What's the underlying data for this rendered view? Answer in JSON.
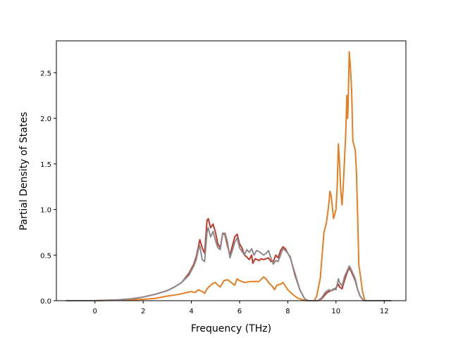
{
  "chart_data": {
    "type": "line",
    "title": "",
    "xlabel": "Frequency (THz)",
    "ylabel": "Partial Density of States",
    "xlim": [
      -1.6,
      12.9
    ],
    "ylim": [
      0,
      2.85
    ],
    "xticks": [
      0,
      2,
      4,
      6,
      8,
      10,
      12
    ],
    "xtick_labels": [
      "0",
      "2",
      "4",
      "6",
      "8",
      "10",
      "12"
    ],
    "yticks": [
      0,
      0.5,
      1.0,
      1.5,
      2.0,
      2.5
    ],
    "ytick_labels": [
      "0.0",
      "0.5",
      "1.0",
      "1.5",
      "2.0",
      "2.5"
    ],
    "grid": false,
    "legend": "none",
    "series": [
      {
        "color": "#c0392b",
        "points": [
          [
            -1.2,
            0
          ],
          [
            0,
            0
          ],
          [
            0.5,
            0.005
          ],
          [
            1,
            0.01
          ],
          [
            1.5,
            0.02
          ],
          [
            2,
            0.04
          ],
          [
            2.5,
            0.07
          ],
          [
            3,
            0.11
          ],
          [
            3.3,
            0.15
          ],
          [
            3.6,
            0.2
          ],
          [
            3.9,
            0.3
          ],
          [
            4.1,
            0.4
          ],
          [
            4.2,
            0.48
          ],
          [
            4.3,
            0.6
          ],
          [
            4.35,
            0.67
          ],
          [
            4.45,
            0.58
          ],
          [
            4.55,
            0.52
          ],
          [
            4.65,
            0.88
          ],
          [
            4.7,
            0.9
          ],
          [
            4.8,
            0.8
          ],
          [
            4.9,
            0.84
          ],
          [
            5.0,
            0.75
          ],
          [
            5.1,
            0.62
          ],
          [
            5.2,
            0.58
          ],
          [
            5.3,
            0.74
          ],
          [
            5.4,
            0.72
          ],
          [
            5.5,
            0.6
          ],
          [
            5.6,
            0.5
          ],
          [
            5.7,
            0.6
          ],
          [
            5.8,
            0.7
          ],
          [
            5.9,
            0.73
          ],
          [
            6.0,
            0.62
          ],
          [
            6.1,
            0.58
          ],
          [
            6.2,
            0.5
          ],
          [
            6.3,
            0.48
          ],
          [
            6.4,
            0.45
          ],
          [
            6.5,
            0.5
          ],
          [
            6.55,
            0.41
          ],
          [
            6.65,
            0.46
          ],
          [
            6.8,
            0.44
          ],
          [
            6.9,
            0.46
          ],
          [
            7.0,
            0.45
          ],
          [
            7.1,
            0.46
          ],
          [
            7.2,
            0.47
          ],
          [
            7.3,
            0.43
          ],
          [
            7.4,
            0.43
          ],
          [
            7.5,
            0.5
          ],
          [
            7.6,
            0.47
          ],
          [
            7.7,
            0.55
          ],
          [
            7.8,
            0.59
          ],
          [
            7.9,
            0.57
          ],
          [
            8.0,
            0.52
          ],
          [
            8.1,
            0.48
          ],
          [
            8.3,
            0.28
          ],
          [
            8.5,
            0.12
          ],
          [
            8.7,
            0.02
          ],
          [
            8.85,
            0
          ],
          [
            9.25,
            0
          ],
          [
            9.4,
            0.02
          ],
          [
            9.6,
            0.08
          ],
          [
            9.7,
            0.1
          ],
          [
            9.8,
            0.11
          ],
          [
            9.9,
            0.12
          ],
          [
            10.0,
            0.14
          ],
          [
            10.1,
            0.18
          ],
          [
            10.15,
            0.15
          ],
          [
            10.25,
            0.13
          ],
          [
            10.35,
            0.22
          ],
          [
            10.45,
            0.3
          ],
          [
            10.55,
            0.36
          ],
          [
            10.6,
            0.34
          ],
          [
            10.7,
            0.28
          ],
          [
            10.8,
            0.22
          ],
          [
            10.9,
            0.12
          ],
          [
            11.0,
            0.05
          ],
          [
            11.15,
            0
          ],
          [
            12.3,
            0
          ]
        ]
      },
      {
        "color": "#e67e22",
        "points": [
          [
            -1.2,
            0
          ],
          [
            0,
            0
          ],
          [
            0.5,
            0.003
          ],
          [
            1,
            0.005
          ],
          [
            1.5,
            0.01
          ],
          [
            2,
            0.015
          ],
          [
            2.5,
            0.025
          ],
          [
            3,
            0.05
          ],
          [
            3.5,
            0.07
          ],
          [
            3.8,
            0.09
          ],
          [
            4.0,
            0.1
          ],
          [
            4.15,
            0.09
          ],
          [
            4.3,
            0.12
          ],
          [
            4.45,
            0.1
          ],
          [
            4.55,
            0.08
          ],
          [
            4.65,
            0.13
          ],
          [
            4.8,
            0.17
          ],
          [
            4.9,
            0.19
          ],
          [
            5.0,
            0.2
          ],
          [
            5.1,
            0.17
          ],
          [
            5.2,
            0.15
          ],
          [
            5.35,
            0.22
          ],
          [
            5.5,
            0.23
          ],
          [
            5.6,
            0.21
          ],
          [
            5.7,
            0.19
          ],
          [
            5.8,
            0.17
          ],
          [
            5.9,
            0.24
          ],
          [
            6.0,
            0.22
          ],
          [
            6.2,
            0.2
          ],
          [
            6.5,
            0.21
          ],
          [
            6.8,
            0.21
          ],
          [
            7.0,
            0.26
          ],
          [
            7.1,
            0.24
          ],
          [
            7.2,
            0.2
          ],
          [
            7.35,
            0.16
          ],
          [
            7.45,
            0.12
          ],
          [
            7.55,
            0.17
          ],
          [
            7.7,
            0.18
          ],
          [
            7.8,
            0.2
          ],
          [
            7.9,
            0.16
          ],
          [
            8.0,
            0.12
          ],
          [
            8.2,
            0.07
          ],
          [
            8.4,
            0.03
          ],
          [
            8.6,
            0.01
          ],
          [
            8.8,
            0
          ],
          [
            9.1,
            0
          ],
          [
            9.2,
            0.05
          ],
          [
            9.35,
            0.25
          ],
          [
            9.5,
            0.75
          ],
          [
            9.6,
            0.85
          ],
          [
            9.7,
            1.05
          ],
          [
            9.75,
            1.2
          ],
          [
            9.8,
            1.15
          ],
          [
            9.9,
            0.9
          ],
          [
            10.0,
            1.0
          ],
          [
            10.05,
            1.25
          ],
          [
            10.1,
            1.72
          ],
          [
            10.15,
            1.5
          ],
          [
            10.2,
            1.2
          ],
          [
            10.25,
            1.05
          ],
          [
            10.3,
            1.25
          ],
          [
            10.4,
            1.8
          ],
          [
            10.45,
            2.25
          ],
          [
            10.48,
            2.0
          ],
          [
            10.5,
            2.1
          ],
          [
            10.55,
            2.73
          ],
          [
            10.6,
            2.55
          ],
          [
            10.65,
            2.3
          ],
          [
            10.7,
            1.75
          ],
          [
            10.8,
            1.65
          ],
          [
            10.85,
            1.4
          ],
          [
            10.9,
            0.9
          ],
          [
            10.95,
            0.38
          ],
          [
            11.0,
            0.3
          ],
          [
            11.1,
            0.1
          ],
          [
            11.2,
            0
          ],
          [
            12.3,
            0
          ]
        ]
      },
      {
        "color": "#8e8a8e",
        "points": [
          [
            -1.2,
            0
          ],
          [
            0,
            0
          ],
          [
            0.5,
            0.005
          ],
          [
            1,
            0.01
          ],
          [
            1.5,
            0.02
          ],
          [
            2,
            0.04
          ],
          [
            2.5,
            0.07
          ],
          [
            3,
            0.11
          ],
          [
            3.3,
            0.15
          ],
          [
            3.6,
            0.2
          ],
          [
            3.9,
            0.28
          ],
          [
            4.1,
            0.38
          ],
          [
            4.2,
            0.45
          ],
          [
            4.3,
            0.57
          ],
          [
            4.35,
            0.6
          ],
          [
            4.45,
            0.45
          ],
          [
            4.55,
            0.43
          ],
          [
            4.65,
            0.75
          ],
          [
            4.7,
            0.8
          ],
          [
            4.8,
            0.7
          ],
          [
            4.9,
            0.76
          ],
          [
            5.0,
            0.66
          ],
          [
            5.1,
            0.58
          ],
          [
            5.2,
            0.56
          ],
          [
            5.3,
            0.74
          ],
          [
            5.4,
            0.74
          ],
          [
            5.5,
            0.64
          ],
          [
            5.6,
            0.47
          ],
          [
            5.7,
            0.55
          ],
          [
            5.8,
            0.64
          ],
          [
            5.9,
            0.69
          ],
          [
            6.0,
            0.58
          ],
          [
            6.1,
            0.54
          ],
          [
            6.2,
            0.5
          ],
          [
            6.3,
            0.56
          ],
          [
            6.4,
            0.53
          ],
          [
            6.5,
            0.57
          ],
          [
            6.6,
            0.5
          ],
          [
            6.7,
            0.55
          ],
          [
            6.8,
            0.54
          ],
          [
            6.9,
            0.52
          ],
          [
            7.0,
            0.5
          ],
          [
            7.1,
            0.52
          ],
          [
            7.2,
            0.55
          ],
          [
            7.3,
            0.47
          ],
          [
            7.4,
            0.4
          ],
          [
            7.5,
            0.44
          ],
          [
            7.6,
            0.43
          ],
          [
            7.7,
            0.5
          ],
          [
            7.8,
            0.57
          ],
          [
            7.9,
            0.55
          ],
          [
            8.0,
            0.52
          ],
          [
            8.1,
            0.47
          ],
          [
            8.3,
            0.3
          ],
          [
            8.5,
            0.12
          ],
          [
            8.7,
            0.02
          ],
          [
            8.85,
            0
          ],
          [
            9.25,
            0
          ],
          [
            9.4,
            0.03
          ],
          [
            9.55,
            0.09
          ],
          [
            9.7,
            0.12
          ],
          [
            9.8,
            0.11
          ],
          [
            9.9,
            0.13
          ],
          [
            10.0,
            0.12
          ],
          [
            10.1,
            0.24
          ],
          [
            10.15,
            0.2
          ],
          [
            10.25,
            0.16
          ],
          [
            10.35,
            0.26
          ],
          [
            10.45,
            0.32
          ],
          [
            10.55,
            0.38
          ],
          [
            10.6,
            0.36
          ],
          [
            10.7,
            0.3
          ],
          [
            10.8,
            0.24
          ],
          [
            10.9,
            0.12
          ],
          [
            11.0,
            0.05
          ],
          [
            11.15,
            0
          ],
          [
            12.3,
            0
          ]
        ]
      }
    ]
  }
}
